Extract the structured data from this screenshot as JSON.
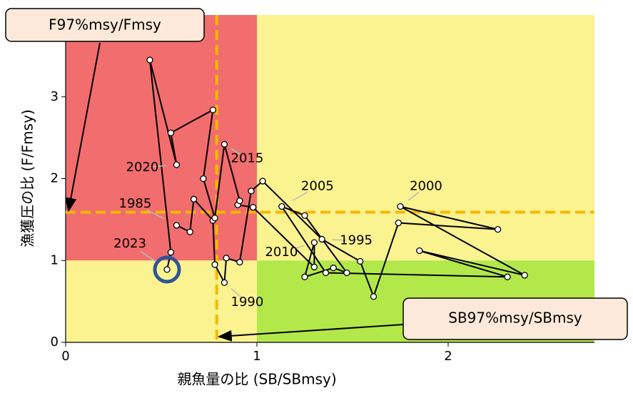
{
  "chart_data": {
    "type": "line",
    "x_label": "親魚量の比 (SB/SBmsy)",
    "y_label": "漁獲圧の比 (F/Fmsy)",
    "xlim": [
      0,
      2.765
    ],
    "ylim": [
      0,
      4
    ],
    "xticks": [
      0,
      1,
      2
    ],
    "yticks": [
      0,
      1,
      2,
      3
    ],
    "thresholds": {
      "x": 1,
      "y": 1
    },
    "zone_colors": [
      "#f26d6d",
      "#fbf290",
      "#fbf290",
      "#b3e84b"
    ],
    "reference_lines": {
      "x": 0.79,
      "y": 1.59,
      "color": "#f5b800",
      "x_label": "SB97%msy/SBmsy",
      "y_label": "F97%msy/Fmsy"
    },
    "line_color": "#000000",
    "highlight_color": "#2f5597",
    "x": [
      0.58,
      0.65,
      0.67,
      0.77,
      0.78,
      0.83,
      0.84,
      0.91,
      0.97,
      1.03,
      1.34,
      1.54,
      1.61,
      1.74,
      2.26,
      1.75,
      2.4,
      1.85,
      2.31,
      1.36,
      1.13,
      1.25,
      1.47,
      1.4,
      1.25,
      1.3,
      1.3,
      0.98,
      0.9,
      0.91,
      0.83,
      0.78,
      0.72,
      0.77,
      0.55,
      0.58,
      0.44,
      0.55,
      0.53
    ],
    "values": [
      1.43,
      1.35,
      1.75,
      1.49,
      0.95,
      0.73,
      1.03,
      0.98,
      1.85,
      1.97,
      1.26,
      0.99,
      0.56,
      1.46,
      1.38,
      1.66,
      0.82,
      1.12,
      0.8,
      0.85,
      1.66,
      1.55,
      0.85,
      0.91,
      0.8,
      1.22,
      0.92,
      1.65,
      1.68,
      1.73,
      2.42,
      1.52,
      2.0,
      2.84,
      2.56,
      2.17,
      3.45,
      1.1,
      0.89
    ],
    "point_labels": [
      "1985",
      null,
      null,
      null,
      null,
      "1990",
      null,
      null,
      null,
      null,
      "1995",
      null,
      null,
      null,
      null,
      "2000",
      null,
      null,
      null,
      null,
      "2005",
      null,
      null,
      null,
      null,
      "2010",
      null,
      null,
      null,
      null,
      "2015",
      null,
      null,
      null,
      null,
      "2020",
      null,
      null,
      "2023"
    ]
  }
}
